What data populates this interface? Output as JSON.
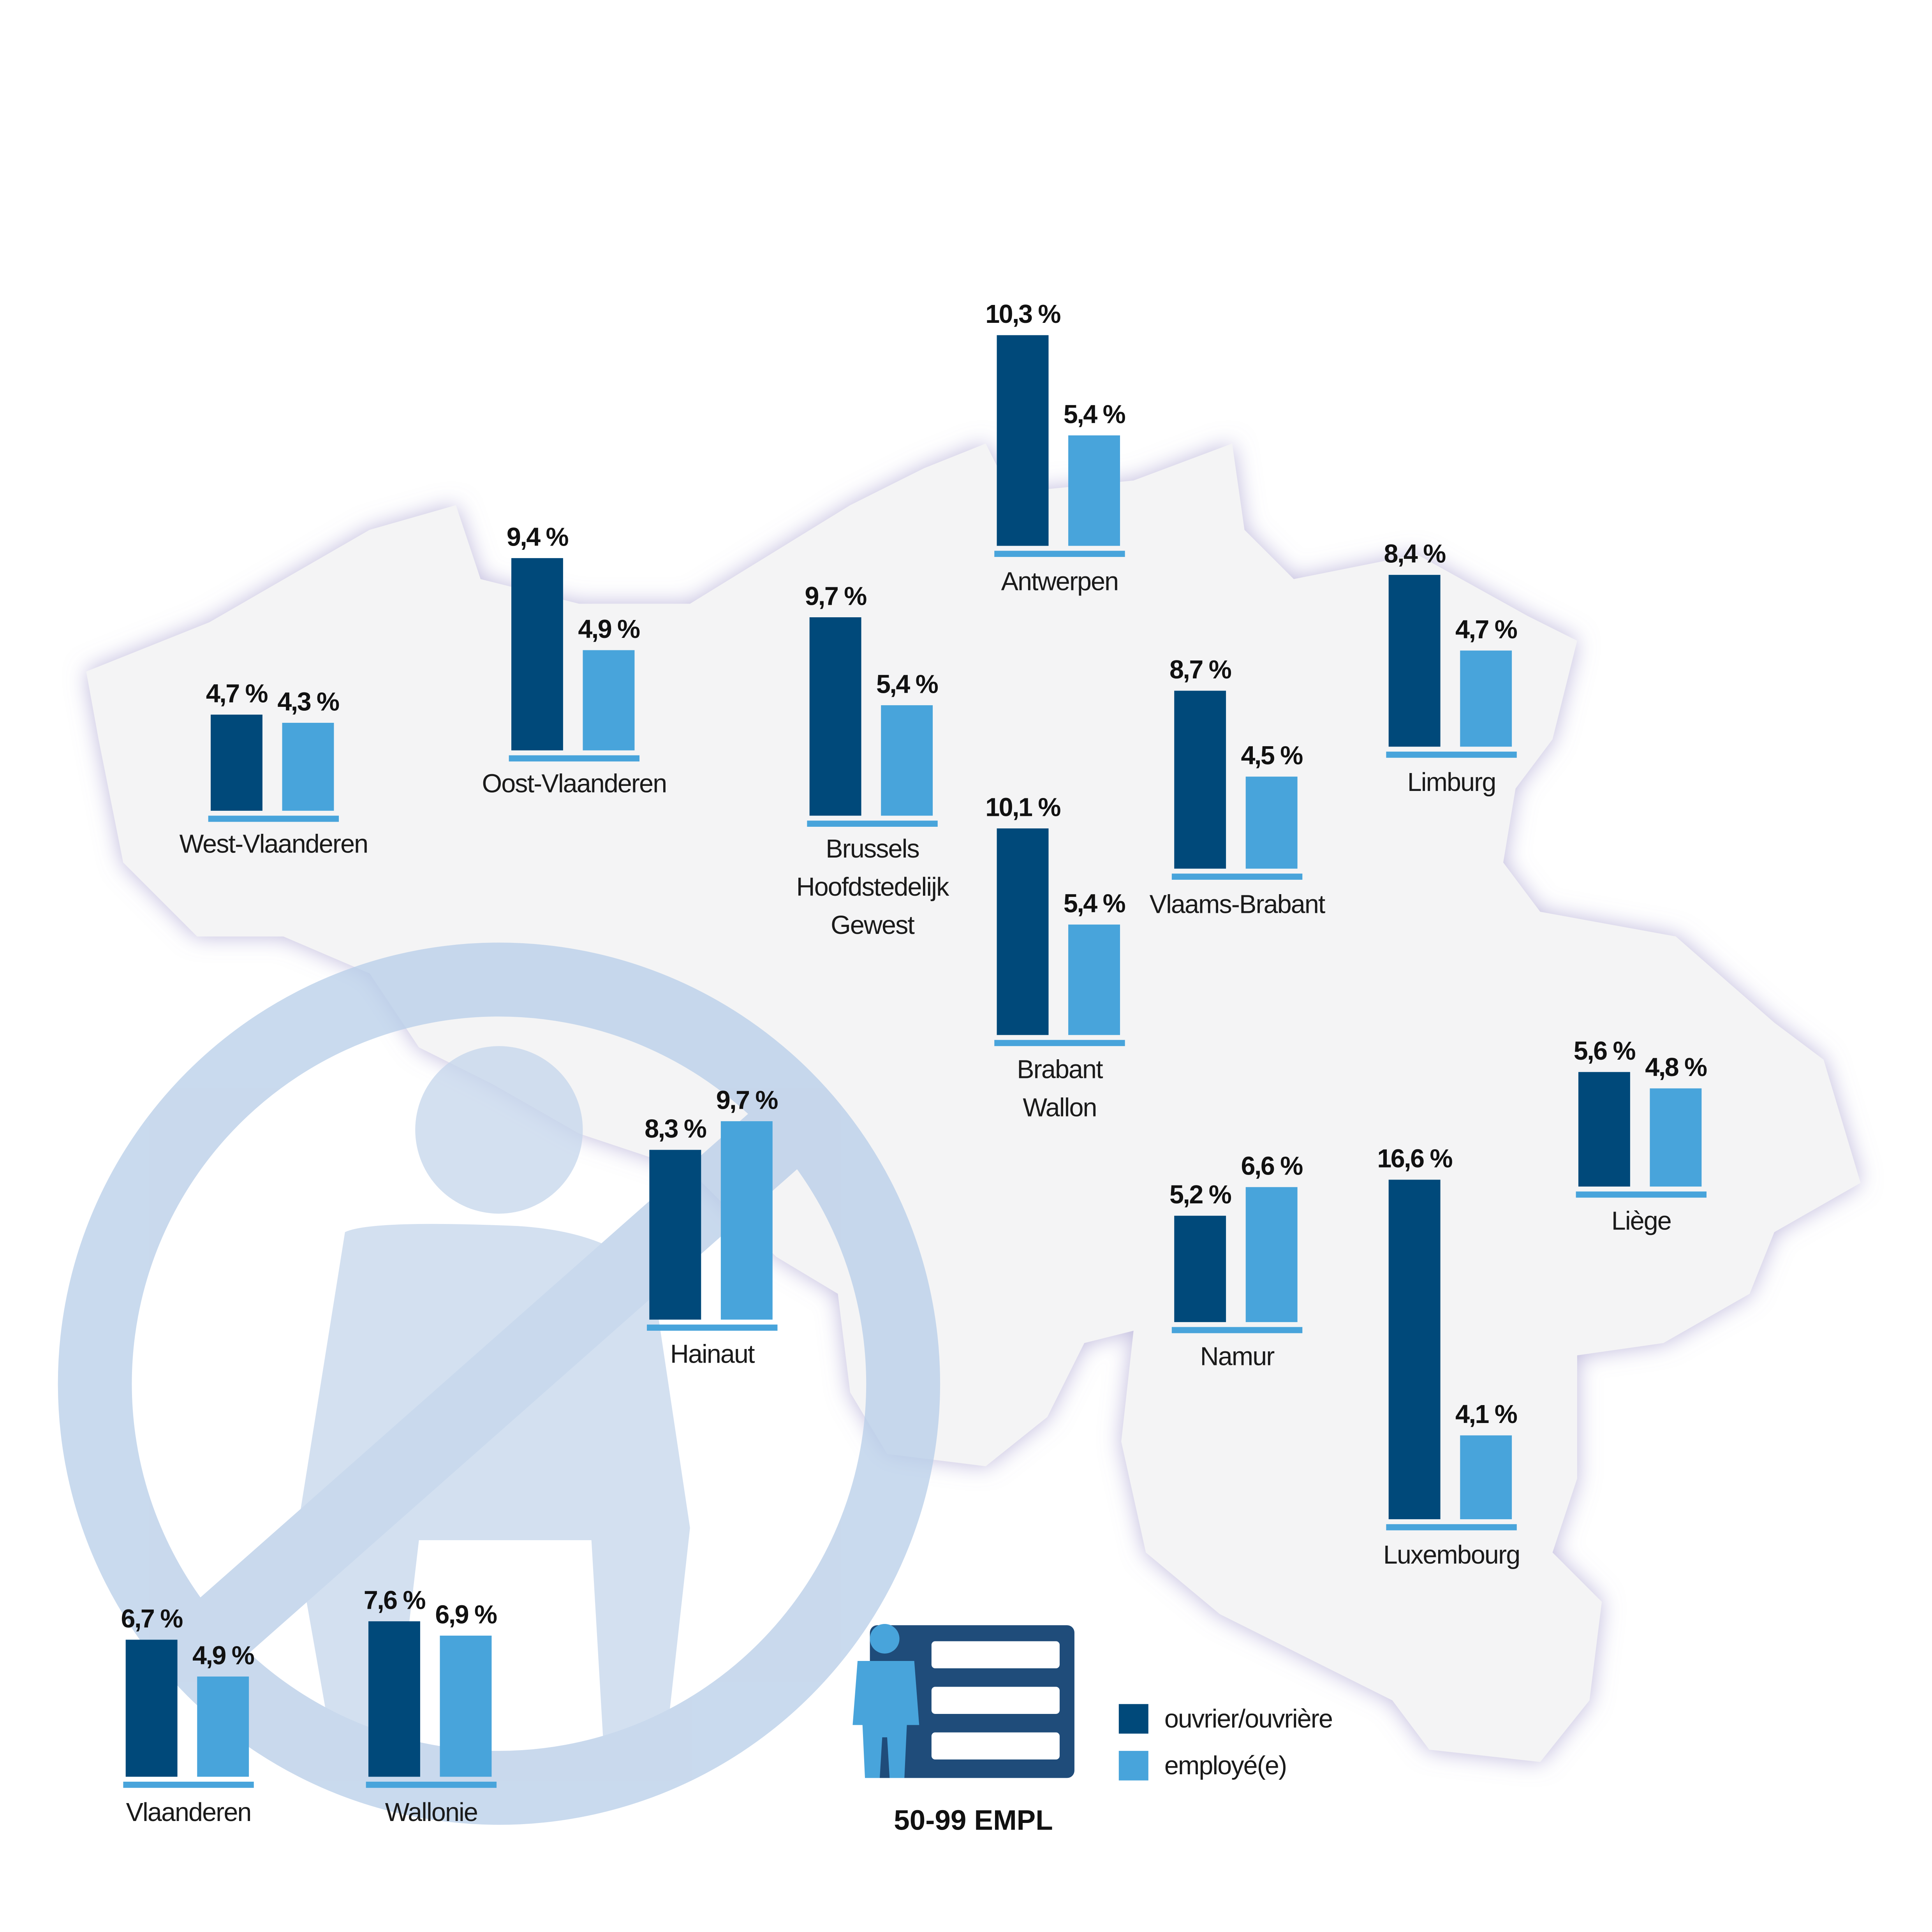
{
  "chart_data": {
    "type": "bar",
    "title": "50-99 EMPL",
    "categories": [
      "West-Vlaanderen",
      "Oost-Vlaanderen",
      "Brussels Hoofdstedelijk Gewest",
      "Antwerpen",
      "Brabant Wallon",
      "Vlaams-Brabant",
      "Limburg",
      "Liège",
      "Namur",
      "Luxembourg",
      "Hainaut",
      "Vlaanderen",
      "Wallonie"
    ],
    "series": [
      {
        "name": "ouvrier/ouvrière",
        "color": "#00497a",
        "values": [
          4.7,
          9.4,
          9.7,
          10.3,
          10.1,
          8.7,
          8.4,
          5.6,
          5.2,
          16.6,
          8.3,
          6.7,
          7.6
        ],
        "value_labels": [
          "4,7 %",
          "9,4 %",
          "9,7 %",
          "10,3 %",
          "10,1 %",
          "8,7 %",
          "8,4 %",
          "5,6 %",
          "5,2 %",
          "16,6 %",
          "8,3 %",
          "6,7 %",
          "7,6 %"
        ]
      },
      {
        "name": "employé(e)",
        "color": "#48a4db",
        "values": [
          4.3,
          4.9,
          5.4,
          5.4,
          5.4,
          4.5,
          4.7,
          4.8,
          6.6,
          4.1,
          9.7,
          4.9,
          6.9
        ],
        "value_labels": [
          "4,3 %",
          "4,9 %",
          "5,4 %",
          "5,4 %",
          "5,4 %",
          "4,5 %",
          "4,7 %",
          "4,8 %",
          "6,6 %",
          "4,1 %",
          "9,7 %",
          "4,9 %",
          "6,9 %"
        ]
      }
    ]
  }
}
